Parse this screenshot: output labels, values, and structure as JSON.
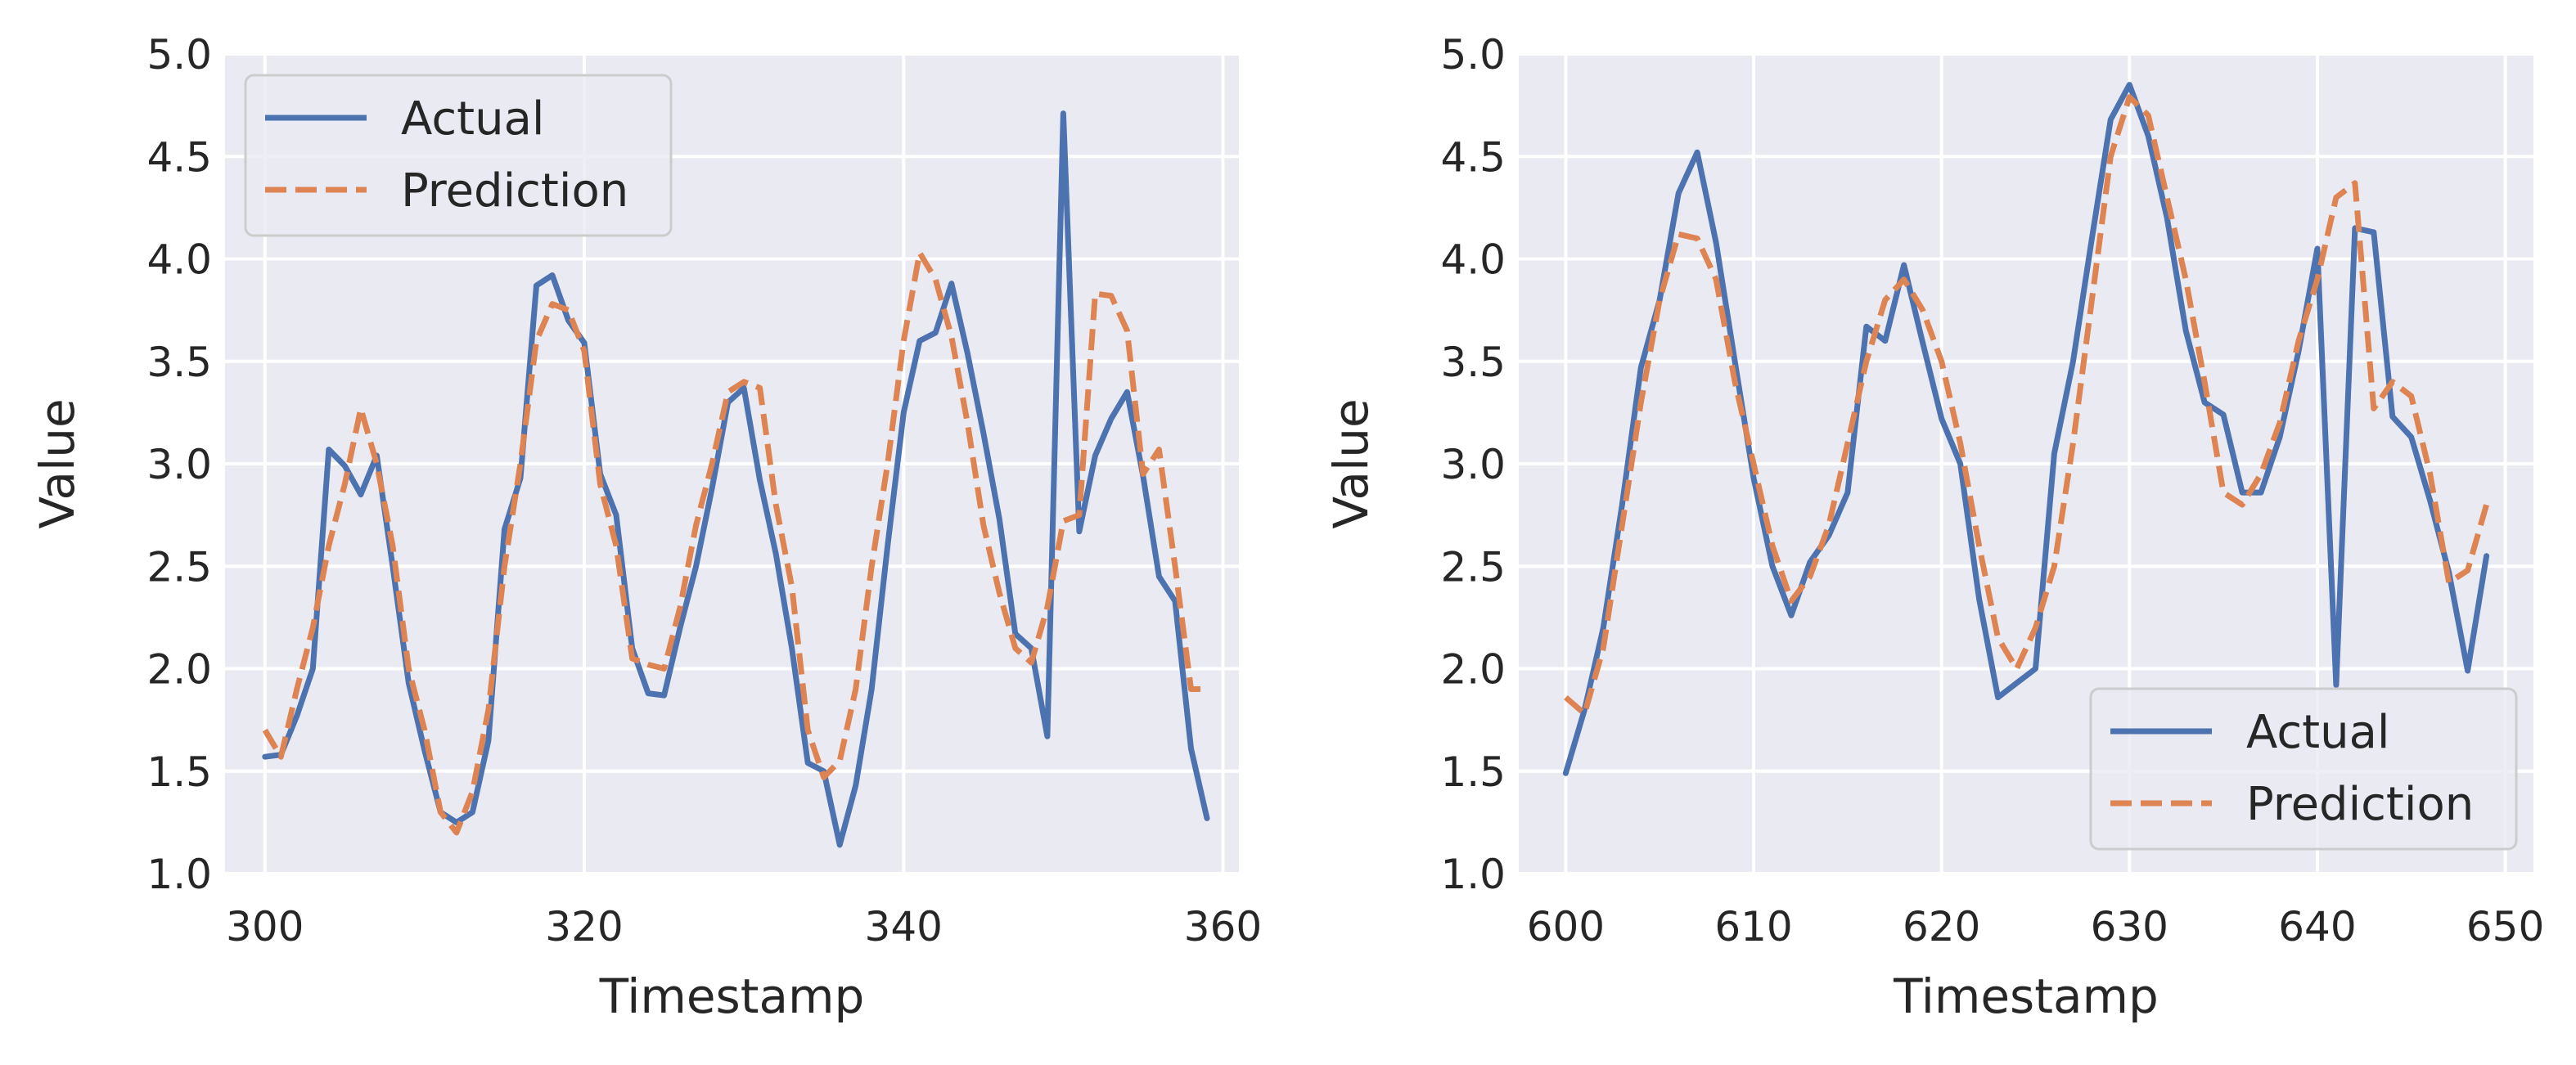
{
  "chart_data": [
    {
      "type": "line",
      "xlabel": "Timestamp",
      "ylabel": "Value",
      "xlim": [
        297.5,
        361
      ],
      "ylim": [
        1.0,
        5.0
      ],
      "xticks": [
        "300",
        "320",
        "340",
        "360"
      ],
      "yticks": [
        "1.0",
        "1.5",
        "2.0",
        "2.5",
        "3.0",
        "3.5",
        "4.0",
        "4.5",
        "5.0"
      ],
      "grid": true,
      "legend_position": "upper left",
      "colors": {
        "Actual": "#4c72b0",
        "Prediction": "#dd8452",
        "background": "#eaeaf2",
        "grid": "#ffffff"
      },
      "series": [
        {
          "name": "Actual",
          "style": "solid",
          "x": [
            300,
            301,
            302,
            303,
            304,
            305,
            306,
            307,
            308,
            309,
            310,
            311,
            312,
            313,
            314,
            315,
            316,
            317,
            318,
            319,
            320,
            321,
            322,
            323,
            324,
            325,
            326,
            327,
            328,
            329,
            330,
            331,
            332,
            333,
            334,
            335,
            336,
            337,
            338,
            339,
            340,
            341,
            342,
            343,
            344,
            345,
            346,
            347,
            348,
            349,
            350,
            351,
            352,
            353,
            354,
            355,
            356,
            357,
            358,
            359
          ],
          "values": [
            1.57,
            1.58,
            1.77,
            2.0,
            3.07,
            2.99,
            2.85,
            3.04,
            2.5,
            1.93,
            1.6,
            1.3,
            1.25,
            1.3,
            1.65,
            2.68,
            2.93,
            3.87,
            3.92,
            3.7,
            3.59,
            2.95,
            2.75,
            2.1,
            1.88,
            1.87,
            2.2,
            2.5,
            2.88,
            3.3,
            3.37,
            2.92,
            2.56,
            2.1,
            1.54,
            1.5,
            1.14,
            1.43,
            1.9,
            2.6,
            3.25,
            3.6,
            3.64,
            3.88,
            3.54,
            3.15,
            2.73,
            2.17,
            2.1,
            1.67,
            4.71,
            2.67,
            3.04,
            3.22,
            3.35,
            2.94,
            2.45,
            2.33,
            1.61,
            1.27
          ]
        },
        {
          "name": "Prediction",
          "style": "dashed",
          "x": [
            300,
            301,
            302,
            303,
            304,
            305,
            306,
            307,
            308,
            309,
            310,
            311,
            312,
            313,
            314,
            315,
            316,
            317,
            318,
            319,
            320,
            321,
            322,
            323,
            324,
            325,
            326,
            327,
            328,
            329,
            330,
            331,
            332,
            333,
            334,
            335,
            336,
            337,
            338,
            339,
            340,
            341,
            342,
            343,
            344,
            345,
            346,
            347,
            348,
            349,
            350,
            351,
            352,
            353,
            354,
            355,
            356,
            357,
            358,
            359
          ],
          "values": [
            1.7,
            1.57,
            1.9,
            2.2,
            2.6,
            2.9,
            3.27,
            3.0,
            2.6,
            2.0,
            1.7,
            1.3,
            1.2,
            1.4,
            1.8,
            2.5,
            3.0,
            3.6,
            3.78,
            3.75,
            3.55,
            2.9,
            2.6,
            2.05,
            2.02,
            2.0,
            2.3,
            2.7,
            3.0,
            3.35,
            3.4,
            3.37,
            2.8,
            2.4,
            1.7,
            1.47,
            1.55,
            1.9,
            2.5,
            3.0,
            3.6,
            4.03,
            3.9,
            3.62,
            3.2,
            2.7,
            2.37,
            2.1,
            2.03,
            2.3,
            2.72,
            2.75,
            3.83,
            3.82,
            3.65,
            2.95,
            3.07,
            2.5,
            1.9,
            1.9
          ]
        }
      ]
    },
    {
      "type": "line",
      "xlabel": "Timestamp",
      "ylabel": "Value",
      "xlim": [
        597.5,
        651.5
      ],
      "ylim": [
        1.0,
        5.0
      ],
      "xticks": [
        "600",
        "610",
        "620",
        "630",
        "640",
        "650"
      ],
      "yticks": [
        "1.0",
        "1.5",
        "2.0",
        "2.5",
        "3.0",
        "3.5",
        "4.0",
        "4.5",
        "5.0"
      ],
      "grid": true,
      "legend_position": "lower right",
      "colors": {
        "Actual": "#4c72b0",
        "Prediction": "#dd8452",
        "background": "#eaeaf2",
        "grid": "#ffffff"
      },
      "series": [
        {
          "name": "Actual",
          "style": "solid",
          "x": [
            600,
            601,
            602,
            603,
            604,
            605,
            606,
            607,
            608,
            609,
            610,
            611,
            612,
            613,
            614,
            615,
            616,
            617,
            618,
            619,
            620,
            621,
            622,
            623,
            624,
            625,
            626,
            627,
            628,
            629,
            630,
            631,
            632,
            633,
            634,
            635,
            636,
            637,
            638,
            639,
            640,
            641,
            642,
            643,
            644,
            645,
            646,
            647,
            648,
            649
          ],
          "values": [
            1.49,
            1.8,
            2.2,
            2.8,
            3.47,
            3.8,
            4.32,
            4.52,
            4.08,
            3.5,
            2.93,
            2.5,
            2.26,
            2.52,
            2.65,
            2.86,
            3.67,
            3.6,
            3.97,
            3.59,
            3.22,
            3.0,
            2.34,
            1.86,
            1.93,
            2.0,
            3.05,
            3.5,
            4.1,
            4.68,
            4.85,
            4.6,
            4.2,
            3.65,
            3.3,
            3.24,
            2.86,
            2.86,
            3.13,
            3.55,
            4.05,
            1.92,
            4.15,
            4.13,
            3.23,
            3.13,
            2.82,
            2.47,
            1.99,
            2.55
          ]
        },
        {
          "name": "Prediction",
          "style": "dashed",
          "x": [
            600,
            601,
            602,
            603,
            604,
            605,
            606,
            607,
            608,
            609,
            610,
            611,
            612,
            613,
            614,
            615,
            616,
            617,
            618,
            619,
            620,
            621,
            622,
            623,
            624,
            625,
            626,
            627,
            628,
            629,
            630,
            631,
            632,
            633,
            634,
            635,
            636,
            637,
            638,
            639,
            640,
            641,
            642,
            643,
            644,
            645,
            646,
            647,
            648,
            649
          ],
          "values": [
            1.86,
            1.78,
            2.1,
            2.7,
            3.3,
            3.8,
            4.12,
            4.1,
            3.9,
            3.4,
            3.0,
            2.6,
            2.33,
            2.45,
            2.7,
            3.1,
            3.5,
            3.8,
            3.9,
            3.75,
            3.5,
            3.1,
            2.6,
            2.15,
            2.0,
            2.2,
            2.5,
            3.1,
            3.8,
            4.5,
            4.79,
            4.7,
            4.3,
            3.9,
            3.4,
            2.86,
            2.8,
            2.95,
            3.2,
            3.6,
            3.9,
            4.3,
            4.37,
            3.27,
            3.4,
            3.33,
            2.95,
            2.42,
            2.48,
            2.8
          ]
        }
      ]
    }
  ]
}
